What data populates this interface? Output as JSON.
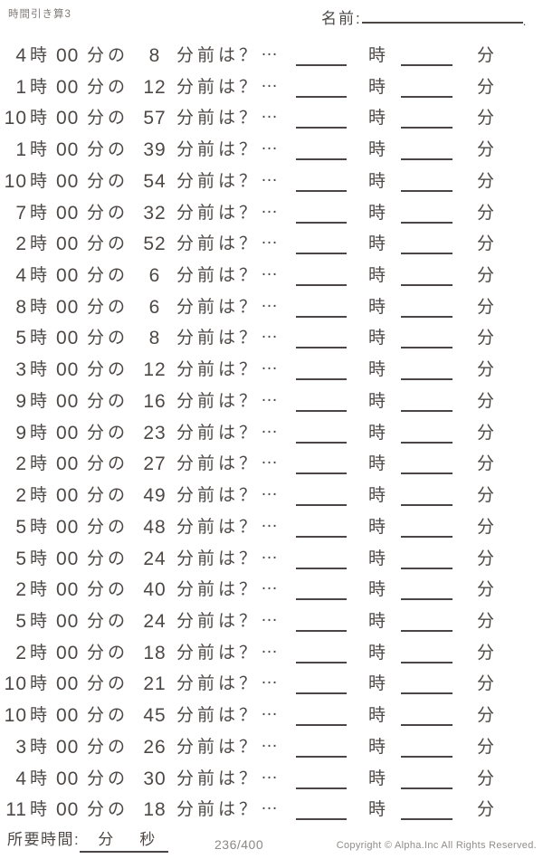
{
  "header": {
    "title": "時間引き算3",
    "name_label": "名前:",
    "name_line_end": "."
  },
  "problem_labels": {
    "hour_unit": "時",
    "zero_minutes": "00",
    "minutes_of": "分の",
    "minutes_before_question": "分前は？",
    "ellipsis": "…",
    "answer_hour_unit": "時",
    "answer_minute_unit": "分"
  },
  "problems": [
    {
      "hour": "4",
      "minutes_before": "8"
    },
    {
      "hour": "1",
      "minutes_before": "12"
    },
    {
      "hour": "10",
      "minutes_before": "57"
    },
    {
      "hour": "1",
      "minutes_before": "39"
    },
    {
      "hour": "10",
      "minutes_before": "54"
    },
    {
      "hour": "7",
      "minutes_before": "32"
    },
    {
      "hour": "2",
      "minutes_before": "52"
    },
    {
      "hour": "4",
      "minutes_before": "6"
    },
    {
      "hour": "8",
      "minutes_before": "6"
    },
    {
      "hour": "5",
      "minutes_before": "8"
    },
    {
      "hour": "3",
      "minutes_before": "12"
    },
    {
      "hour": "9",
      "minutes_before": "16"
    },
    {
      "hour": "9",
      "minutes_before": "23"
    },
    {
      "hour": "2",
      "minutes_before": "27"
    },
    {
      "hour": "2",
      "minutes_before": "49"
    },
    {
      "hour": "5",
      "minutes_before": "48"
    },
    {
      "hour": "5",
      "minutes_before": "24"
    },
    {
      "hour": "2",
      "minutes_before": "40"
    },
    {
      "hour": "5",
      "minutes_before": "24"
    },
    {
      "hour": "2",
      "minutes_before": "18"
    },
    {
      "hour": "10",
      "minutes_before": "21"
    },
    {
      "hour": "10",
      "minutes_before": "45"
    },
    {
      "hour": "3",
      "minutes_before": "26"
    },
    {
      "hour": "4",
      "minutes_before": "30"
    },
    {
      "hour": "11",
      "minutes_before": "18"
    }
  ],
  "footer": {
    "elapsed_time_label": "所要時間:",
    "minutes_unit": "分",
    "seconds_unit": "秒",
    "page_number": "236/400",
    "copyright": "Copyright ©  Alpha.Inc All Rights Reserved."
  },
  "colors": {
    "text": "#4d4846",
    "muted_text": "#8d8986",
    "line": "#4b4545",
    "background": "#ffffff"
  }
}
